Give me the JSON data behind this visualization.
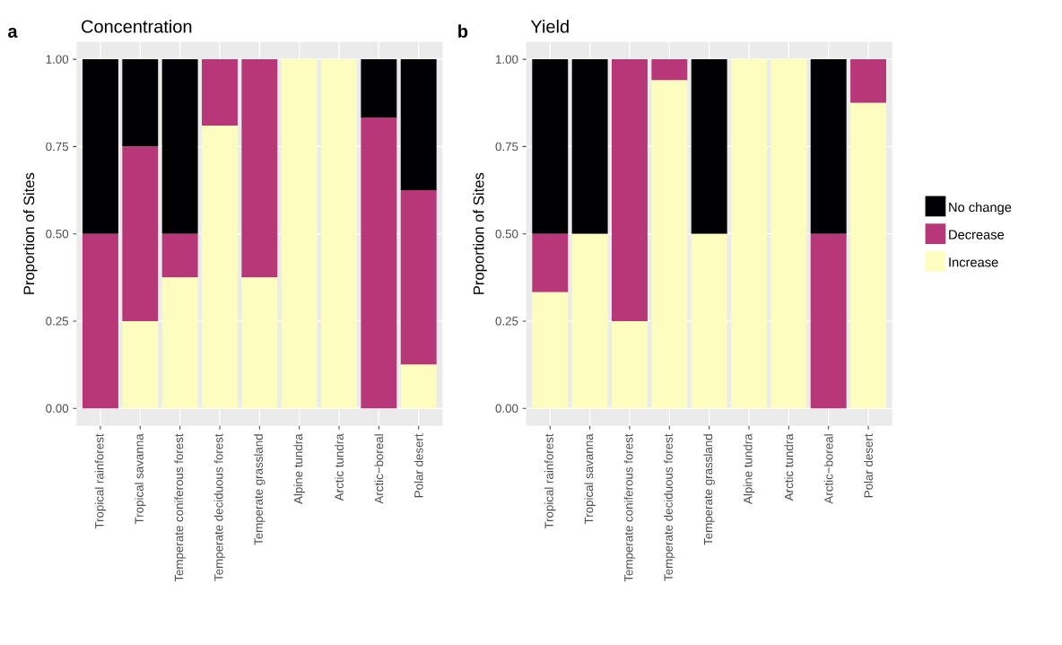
{
  "chart_data": [
    {
      "type": "bar",
      "title": "Concentration",
      "annotations": [
        "a"
      ],
      "ylabel": "Proportion of Sites",
      "stacked": true,
      "grid": true,
      "categories": [
        "Tropical rainforest",
        "Tropical savanna",
        "Temperate coniferous forest",
        "Temperate deciduous forest",
        "Temperate grassland",
        "Alpine tundra",
        "Arctic tundra",
        "Arctic−boreal",
        "Polar desert"
      ],
      "ylim": [
        -0.05,
        1.05
      ],
      "yticks": [
        {
          "value": 0,
          "label": "0.00"
        },
        {
          "value": 0.25,
          "label": "0.25"
        },
        {
          "value": 0.5,
          "label": "0.50"
        },
        {
          "value": 0.75,
          "label": "0.75"
        },
        {
          "value": 1,
          "label": "1.00"
        }
      ],
      "series": [
        {
          "color": "#fcfdbf",
          "values": [
            0,
            0.25,
            0.375,
            0.81,
            0.375,
            1,
            1,
            0,
            0.125
          ]
        },
        {
          "color": "#b73779",
          "values": [
            0.5,
            0.5,
            0.125,
            0.19,
            0.625,
            0,
            0,
            0.833,
            0.5
          ]
        },
        {
          "color": "#000004",
          "values": [
            0.5,
            0.25,
            0.5,
            0,
            0,
            0,
            0,
            0.167,
            0.375
          ]
        }
      ]
    },
    {
      "type": "bar",
      "title": "Yield",
      "annotations": [
        "b"
      ],
      "ylabel": "Proportion of Sites",
      "stacked": true,
      "grid": true,
      "legend": "right",
      "categories": [
        "Tropical rainforest",
        "Tropical savanna",
        "Temperate coniferous forest",
        "Temperate deciduous forest",
        "Temperate grassland",
        "Alpine tundra",
        "Arctic tundra",
        "Arctic−boreal",
        "Polar desert"
      ],
      "ylim": [
        -0.05,
        1.05
      ],
      "yticks": [
        {
          "value": 0,
          "label": "0.00"
        },
        {
          "value": 0.25,
          "label": "0.25"
        },
        {
          "value": 0.5,
          "label": "0.50"
        },
        {
          "value": 0.75,
          "label": "0.75"
        },
        {
          "value": 1,
          "label": "1.00"
        }
      ],
      "series": [
        {
          "name": "Increase",
          "color": "#fcfdbf",
          "values": [
            0.333,
            0.5,
            0.25,
            0.94,
            0.5,
            1,
            1,
            0,
            0.875
          ]
        },
        {
          "name": "Decrease",
          "color": "#b73779",
          "values": [
            0.167,
            0,
            0.75,
            0.06,
            0,
            0,
            0,
            0.5,
            0.125
          ]
        },
        {
          "name": "No change",
          "color": "#000004",
          "values": [
            0.5,
            0.5,
            0,
            0,
            0.5,
            0,
            0,
            0.5,
            0
          ]
        }
      ]
    }
  ]
}
